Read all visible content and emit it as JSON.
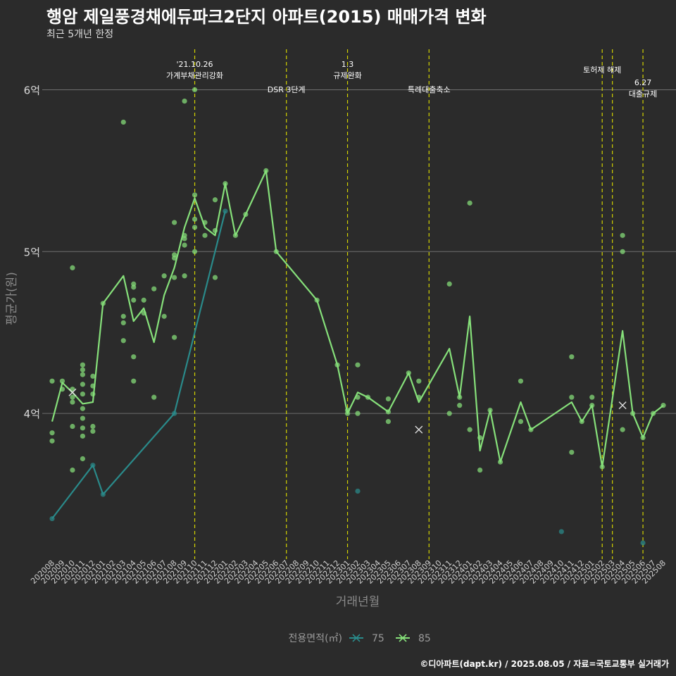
{
  "header": {
    "title": "행암 제일풍경채에듀파크2단지 아파트(2015) 매매가격 변화",
    "subtitle": "최근 5개년 한정",
    "caption": "©디아파트(dapt.kr) / 2025.08.05 / 자료=국토교통부 실거래가"
  },
  "chart_data": {
    "type": "line",
    "xlabel": "거래년월",
    "ylabel": "평균가(원)",
    "y_ticks": [
      {
        "value": 4.0,
        "label": "4억"
      },
      {
        "value": 5.0,
        "label": "5억"
      },
      {
        "value": 6.0,
        "label": "6억"
      }
    ],
    "ylim": [
      3.1,
      6.25
    ],
    "grid": true,
    "legend_title": "전용면적(㎡)",
    "legend_position": "bottom",
    "months": [
      "202008",
      "202009",
      "202010",
      "202011",
      "202012",
      "202101",
      "202102",
      "202103",
      "202104",
      "202105",
      "202106",
      "202107",
      "202108",
      "202109",
      "202110",
      "202111",
      "202112",
      "202201",
      "202202",
      "202203",
      "202204",
      "202205",
      "202206",
      "202207",
      "202208",
      "202209",
      "202210",
      "202211",
      "202212",
      "202301",
      "202302",
      "202303",
      "202304",
      "202305",
      "202306",
      "202307",
      "202308",
      "202309",
      "202310",
      "202311",
      "202312",
      "202401",
      "202402",
      "202403",
      "202404",
      "202405",
      "202406",
      "202407",
      "202408",
      "202409",
      "202410",
      "202411",
      "202412",
      "202501",
      "202502",
      "202503",
      "202504",
      "202505",
      "202506",
      "202507",
      "202508"
    ],
    "series": [
      {
        "name": "75",
        "color": "#2a8a8a",
        "line": [
          [
            "202008",
            3.35
          ],
          [
            "202012",
            3.68
          ],
          [
            "202101",
            3.5
          ],
          [
            "202108",
            4.0
          ],
          [
            "202201",
            5.25
          ]
        ],
        "points": [
          [
            "202008",
            3.35
          ],
          [
            "202012",
            3.68
          ],
          [
            "202101",
            3.5
          ],
          [
            "202108",
            4.0
          ],
          [
            "202201",
            5.25
          ],
          [
            "202302",
            3.52
          ],
          [
            "202410",
            3.27
          ],
          [
            "202506",
            3.2
          ]
        ]
      },
      {
        "name": "85",
        "color": "#86e07a",
        "line": [
          [
            "202008",
            3.95
          ],
          [
            "202009",
            4.19
          ],
          [
            "202010",
            4.13
          ],
          [
            "202011",
            4.06
          ],
          [
            "202012",
            4.07
          ],
          [
            "202101",
            4.68
          ],
          [
            "202103",
            4.85
          ],
          [
            "202104",
            4.57
          ],
          [
            "202105",
            4.65
          ],
          [
            "202106",
            4.44
          ],
          [
            "202107",
            4.73
          ],
          [
            "202108",
            4.9
          ],
          [
            "202109",
            5.15
          ],
          [
            "202110",
            5.33
          ],
          [
            "202111",
            5.15
          ],
          [
            "202112",
            5.1
          ],
          [
            "202201",
            5.42
          ],
          [
            "202202",
            5.1
          ],
          [
            "202203",
            5.23
          ],
          [
            "202205",
            5.5
          ],
          [
            "202206",
            5.0
          ],
          [
            "202210",
            4.7
          ],
          [
            "202212",
            4.3
          ],
          [
            "202301",
            4.0
          ],
          [
            "202302",
            4.13
          ],
          [
            "202303",
            4.1
          ],
          [
            "202305",
            4.01
          ],
          [
            "202307",
            4.25
          ],
          [
            "202308",
            4.07
          ],
          [
            "202311",
            4.4
          ],
          [
            "202312",
            4.1
          ],
          [
            "202401",
            4.6
          ],
          [
            "202402",
            3.77
          ],
          [
            "202403",
            4.02
          ],
          [
            "202404",
            3.7
          ],
          [
            "202406",
            4.07
          ],
          [
            "202407",
            3.9
          ],
          [
            "202411",
            4.07
          ],
          [
            "202412",
            3.95
          ],
          [
            "202501",
            4.05
          ],
          [
            "202502",
            3.67
          ],
          [
            "202504",
            4.51
          ],
          [
            "202505",
            4.0
          ],
          [
            "202506",
            3.85
          ],
          [
            "202507",
            4.0
          ],
          [
            "202508",
            4.05
          ]
        ],
        "points": [
          [
            "202008",
            4.2
          ],
          [
            "202008",
            3.88
          ],
          [
            "202008",
            3.83
          ],
          [
            "202009",
            4.2
          ],
          [
            "202009",
            4.15
          ],
          [
            "202010",
            4.9
          ],
          [
            "202010",
            4.15
          ],
          [
            "202010",
            4.1
          ],
          [
            "202010",
            4.07
          ],
          [
            "202010",
            3.92
          ],
          [
            "202010",
            3.65
          ],
          [
            "202011",
            4.3
          ],
          [
            "202011",
            4.27
          ],
          [
            "202011",
            4.24
          ],
          [
            "202011",
            4.18
          ],
          [
            "202011",
            4.12
          ],
          [
            "202011",
            4.03
          ],
          [
            "202011",
            3.97
          ],
          [
            "202011",
            3.91
          ],
          [
            "202011",
            3.86
          ],
          [
            "202011",
            3.72
          ],
          [
            "202012",
            4.23
          ],
          [
            "202012",
            4.17
          ],
          [
            "202012",
            4.12
          ],
          [
            "202012",
            3.92
          ],
          [
            "202012",
            3.89
          ],
          [
            "202101",
            4.68
          ],
          [
            "202103",
            5.8
          ],
          [
            "202103",
            4.6
          ],
          [
            "202103",
            4.56
          ],
          [
            "202103",
            4.45
          ],
          [
            "202104",
            4.8
          ],
          [
            "202104",
            4.78
          ],
          [
            "202104",
            4.7
          ],
          [
            "202104",
            4.35
          ],
          [
            "202104",
            4.2
          ],
          [
            "202105",
            4.7
          ],
          [
            "202105",
            4.62
          ],
          [
            "202106",
            4.77
          ],
          [
            "202106",
            4.1
          ],
          [
            "202107",
            4.85
          ],
          [
            "202107",
            4.6
          ],
          [
            "202108",
            5.18
          ],
          [
            "202108",
            4.98
          ],
          [
            "202108",
            4.96
          ],
          [
            "202108",
            4.84
          ],
          [
            "202108",
            4.47
          ],
          [
            "202109",
            5.93
          ],
          [
            "202109",
            5.1
          ],
          [
            "202109",
            5.08
          ],
          [
            "202109",
            5.04
          ],
          [
            "202109",
            4.85
          ],
          [
            "202110",
            6.0
          ],
          [
            "202110",
            5.35
          ],
          [
            "202110",
            5.2
          ],
          [
            "202110",
            5.15
          ],
          [
            "202110",
            5.0
          ],
          [
            "202111",
            5.18
          ],
          [
            "202111",
            5.1
          ],
          [
            "202112",
            5.32
          ],
          [
            "202112",
            5.13
          ],
          [
            "202112",
            4.84
          ],
          [
            "202201",
            5.42
          ],
          [
            "202202",
            5.1
          ],
          [
            "202203",
            5.23
          ],
          [
            "202205",
            5.5
          ],
          [
            "202206",
            5.0
          ],
          [
            "202210",
            4.7
          ],
          [
            "202212",
            4.3
          ],
          [
            "202301",
            4.02
          ],
          [
            "202301",
            4.0
          ],
          [
            "202302",
            4.3
          ],
          [
            "202302",
            4.1
          ],
          [
            "202302",
            4.0
          ],
          [
            "202303",
            4.1
          ],
          [
            "202305",
            4.09
          ],
          [
            "202305",
            4.01
          ],
          [
            "202305",
            3.95
          ],
          [
            "202307",
            4.25
          ],
          [
            "202308",
            4.2
          ],
          [
            "202308",
            4.1
          ],
          [
            "202311",
            4.8
          ],
          [
            "202311",
            4.0
          ],
          [
            "202312",
            4.1
          ],
          [
            "202312",
            4.05
          ],
          [
            "202401",
            5.3
          ],
          [
            "202401",
            3.9
          ],
          [
            "202402",
            3.85
          ],
          [
            "202402",
            3.65
          ],
          [
            "202403",
            4.02
          ],
          [
            "202404",
            3.7
          ],
          [
            "202406",
            4.2
          ],
          [
            "202406",
            3.95
          ],
          [
            "202407",
            3.9
          ],
          [
            "202411",
            4.35
          ],
          [
            "202411",
            4.1
          ],
          [
            "202411",
            3.76
          ],
          [
            "202412",
            3.95
          ],
          [
            "202501",
            4.1
          ],
          [
            "202501",
            4.05
          ],
          [
            "202502",
            3.67
          ],
          [
            "202504",
            5.1
          ],
          [
            "202504",
            5.0
          ],
          [
            "202504",
            3.9
          ],
          [
            "202505",
            4.0
          ],
          [
            "202506",
            3.85
          ],
          [
            "202507",
            4.0
          ],
          [
            "202508",
            4.05
          ]
        ],
        "crosses": [
          [
            "202010",
            4.13
          ],
          [
            "202308",
            3.9
          ],
          [
            "202504",
            4.05
          ]
        ]
      }
    ],
    "events": [
      {
        "month": "202110",
        "label": "'21.10.26\n가계부채관리강화"
      },
      {
        "month": "202207",
        "label": "DSR 3단계"
      },
      {
        "month": "202301",
        "label": "1.3\n규제완화"
      },
      {
        "month": "202309",
        "label": "특례대출축소"
      },
      {
        "month": "202502",
        "label": "토허제 해제"
      },
      {
        "month": "202503",
        "label": ""
      },
      {
        "month": "202506",
        "label": "6.27\n대출규제"
      }
    ]
  }
}
